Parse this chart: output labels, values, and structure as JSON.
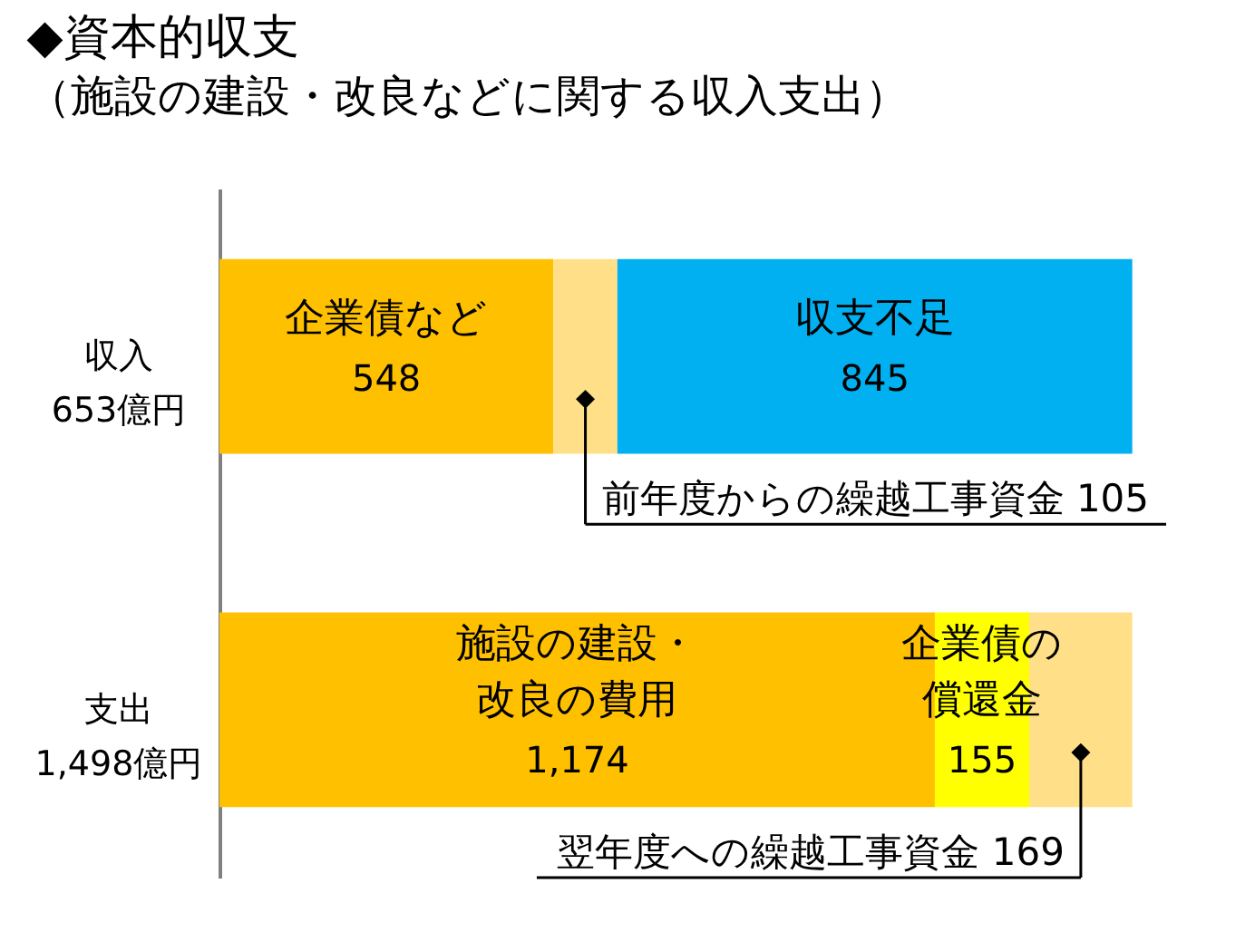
{
  "chart_data": {
    "type": "bar",
    "orientation": "horizontal",
    "stacked": true,
    "tick_labels": "y",
    "title": "◆資本的収支",
    "subtitle": "（施設の建設・改良などに関する収入支出）",
    "categories": [
      "収入\n653億円",
      "支出\n1,498億円"
    ],
    "series": [
      {
        "name": "企業債など",
        "color": "#ffc000",
        "values": [
          548,
          null
        ],
        "value_labels": [
          "548",
          null
        ]
      },
      {
        "name": "前年度からの繰越工事資金",
        "color": "#ffe089",
        "values": [
          105,
          null
        ],
        "value_labels": [
          "105",
          null
        ]
      },
      {
        "name": "収支不足",
        "color": "#00b0f0",
        "values": [
          845,
          null
        ],
        "value_labels": [
          "845",
          null
        ]
      },
      {
        "name": "施設の建設・改良の費用",
        "color": "#ffc000",
        "values": [
          null,
          1174
        ],
        "value_labels": [
          null,
          "1,174"
        ]
      },
      {
        "name": "企業債の償還金",
        "color": "#ffff00",
        "values": [
          null,
          155
        ],
        "value_labels": [
          null,
          "155"
        ]
      },
      {
        "name": "翌年度への繰越工事資金",
        "color": "#ffe089",
        "values": [
          null,
          169
        ],
        "value_labels": [
          null,
          "169"
        ]
      }
    ]
  }
}
